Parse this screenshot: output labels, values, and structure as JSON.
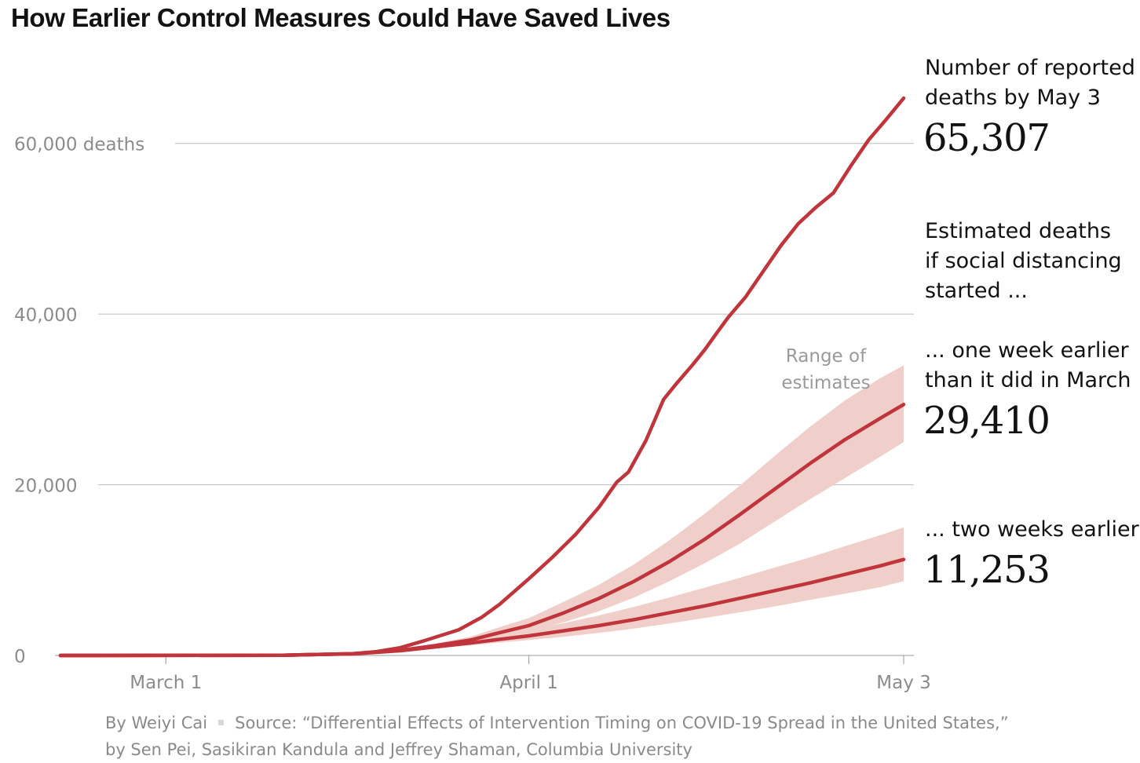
{
  "title": "How Earlier Control Measures Could Have Saved Lives",
  "annotations": {
    "reported_label_1": "Number of reported",
    "reported_label_2": "deaths by May 3",
    "reported_value": "65,307",
    "estimated_1": "Estimated deaths",
    "estimated_2": "if social distancing",
    "estimated_3": "started ...",
    "one_week_1": "... one week earlier",
    "one_week_2": "than it did in March",
    "one_week_value": "29,410",
    "two_weeks": "... two weeks earlier",
    "two_weeks_value": "11,253",
    "range_1": "Range of",
    "range_2": "estimates"
  },
  "footer": {
    "byline": "By Weiyi Cai",
    "source": "Source: “Differential Effects of Intervention Timing on COVID-19 Spread in the United States,” by Sen Pei, Sasikiran Kandula and Jeffrey Shaman, Columbia University"
  },
  "colors": {
    "line": "#c0343b",
    "band": "#f0cfcb",
    "grid": "#bdbdbd",
    "axis_text": "#8c8c8c"
  },
  "chart_data": {
    "type": "line",
    "title": "How Earlier Control Measures Could Have Saved Lives",
    "x_ticks": [
      {
        "label": "March 1",
        "day": 0
      },
      {
        "label": "April 1",
        "day": 31
      },
      {
        "label": "May 3",
        "day": 63
      }
    ],
    "y_ticks": [
      {
        "label": "0",
        "value": 0
      },
      {
        "label": "20,000",
        "value": 20000
      },
      {
        "label": "40,000",
        "value": 40000
      },
      {
        "label": "60,000 deaths",
        "value": 60000
      }
    ],
    "ylim": [
      0,
      65307
    ],
    "xlim": [
      -9,
      63
    ],
    "grid": true,
    "series": [
      {
        "name": "reported",
        "x": [
          -9,
          0,
          10,
          16,
          18,
          20,
          22,
          25,
          27,
          28.5,
          30,
          31,
          33,
          35,
          37,
          38.5,
          39.5,
          41,
          42.5,
          43.5,
          45,
          46,
          47,
          48,
          49.5,
          50.5,
          51.5,
          52.5,
          54,
          55.5,
          57,
          58.5,
          60,
          61.5,
          63
        ],
        "y": [
          0,
          5,
          30,
          200,
          450,
          900,
          1700,
          3000,
          4500,
          6000,
          7800,
          9000,
          11500,
          14200,
          17400,
          20300,
          21500,
          25200,
          30000,
          31700,
          34100,
          35800,
          37700,
          39600,
          42000,
          44000,
          46000,
          48000,
          50600,
          52500,
          54200,
          57400,
          60400,
          62800,
          65307
        ]
      },
      {
        "name": "one week earlier",
        "x": [
          -9,
          10,
          16,
          20,
          23,
          26,
          28,
          31,
          34,
          37,
          40,
          43,
          46,
          49,
          52,
          55,
          58,
          61,
          63
        ],
        "y": [
          0,
          30,
          200,
          600,
          1150,
          1800,
          2500,
          3500,
          5000,
          6700,
          8700,
          11000,
          13600,
          16500,
          19500,
          22500,
          25300,
          27800,
          29410
        ],
        "band_low": [
          0,
          25,
          170,
          500,
          950,
          1450,
          1950,
          2800,
          3900,
          5200,
          6800,
          8700,
          10800,
          13100,
          15700,
          18300,
          20800,
          23300,
          25000
        ],
        "band_high": [
          0,
          35,
          230,
          700,
          1400,
          2200,
          3100,
          4400,
          6300,
          8300,
          10700,
          13500,
          16600,
          19900,
          23400,
          26800,
          29900,
          32500,
          34000
        ]
      },
      {
        "name": "two weeks earlier",
        "x": [
          -9,
          10,
          16,
          20,
          23,
          26,
          28,
          31,
          34,
          37,
          40,
          43,
          46,
          49,
          52,
          55,
          58,
          61,
          63
        ],
        "y": [
          0,
          25,
          180,
          550,
          1000,
          1450,
          1800,
          2300,
          2900,
          3500,
          4200,
          5000,
          5800,
          6700,
          7600,
          8500,
          9500,
          10500,
          11253
        ],
        "band_low": [
          0,
          20,
          160,
          480,
          850,
          1200,
          1450,
          1800,
          2200,
          2650,
          3150,
          3750,
          4400,
          5050,
          5750,
          6500,
          7250,
          8000,
          8700
        ],
        "band_high": [
          0,
          30,
          210,
          640,
          1200,
          1800,
          2300,
          3000,
          3800,
          4700,
          5700,
          6800,
          7950,
          9100,
          10300,
          11500,
          12800,
          14100,
          15000
        ]
      }
    ]
  }
}
